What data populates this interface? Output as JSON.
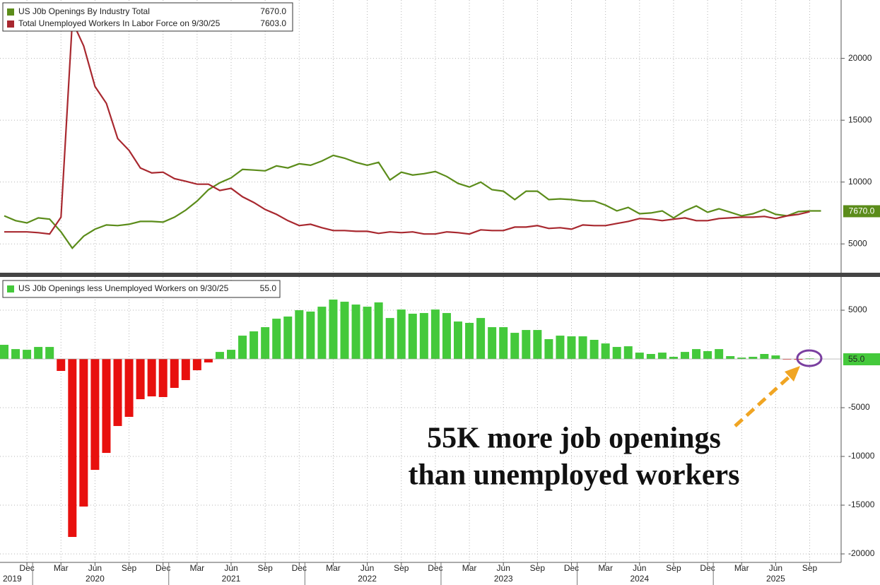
{
  "chart_data": [
    {
      "type": "line",
      "x": [
        "2019-10",
        "2019-11",
        "2019-12",
        "2020-01",
        "2020-02",
        "2020-03",
        "2020-04",
        "2020-05",
        "2020-06",
        "2020-07",
        "2020-08",
        "2020-09",
        "2020-10",
        "2020-11",
        "2020-12",
        "2021-01",
        "2021-02",
        "2021-03",
        "2021-04",
        "2021-05",
        "2021-06",
        "2021-07",
        "2021-08",
        "2021-09",
        "2021-10",
        "2021-11",
        "2021-12",
        "2022-01",
        "2022-02",
        "2022-03",
        "2022-04",
        "2022-05",
        "2022-06",
        "2022-07",
        "2022-08",
        "2022-09",
        "2022-10",
        "2022-11",
        "2022-12",
        "2023-01",
        "2023-02",
        "2023-03",
        "2023-04",
        "2023-05",
        "2023-06",
        "2023-07",
        "2023-08",
        "2023-09",
        "2023-10",
        "2023-11",
        "2023-12",
        "2024-01",
        "2024-02",
        "2024-03",
        "2024-04",
        "2024-05",
        "2024-06",
        "2024-07",
        "2024-08",
        "2024-09",
        "2024-10",
        "2024-11",
        "2024-12",
        "2025-01",
        "2025-02",
        "2025-03",
        "2025-04",
        "2025-05",
        "2025-06",
        "2025-07",
        "2025-08",
        "2025-09"
      ],
      "series": [
        {
          "name": "US J0b Openings By Industry Total",
          "legend_value": "7670.0",
          "tag": "7670.0",
          "color": "#5b8c1a",
          "values": [
            7270,
            6880,
            6700,
            7100,
            7000,
            5970,
            4660,
            5630,
            6190,
            6530,
            6480,
            6590,
            6820,
            6820,
            6760,
            7160,
            7730,
            8470,
            9380,
            9940,
            10340,
            11020,
            10970,
            10910,
            11310,
            11140,
            11480,
            11360,
            11700,
            12160,
            11930,
            11590,
            11360,
            11590,
            10170,
            10800,
            10570,
            10680,
            10850,
            10450,
            9890,
            9600,
            10000,
            9380,
            9260,
            8580,
            9260,
            9260,
            8580,
            8640,
            8580,
            8470,
            8470,
            8130,
            7670,
            7950,
            7440,
            7500,
            7670,
            7100,
            7670,
            8070,
            7560,
            7840,
            7560,
            7270,
            7440,
            7780,
            7390,
            7270,
            7610,
            7670
          ]
        },
        {
          "name": "Total Unemployed Workers In Labor Force  on 9/30/25",
          "legend_value": "7603.0",
          "color": "#a8282f",
          "values": [
            5970,
            5970,
            5970,
            5910,
            5800,
            7160,
            23000,
            21000,
            17730,
            16360,
            13520,
            12560,
            11140,
            10740,
            10800,
            10280,
            10060,
            9830,
            9830,
            9320,
            9490,
            8810,
            8350,
            7780,
            7390,
            6880,
            6480,
            6590,
            6310,
            6080,
            6080,
            6020,
            6020,
            5850,
            5970,
            5910,
            5970,
            5800,
            5800,
            5970,
            5910,
            5800,
            6140,
            6080,
            6080,
            6360,
            6360,
            6480,
            6250,
            6310,
            6190,
            6530,
            6480,
            6480,
            6650,
            6820,
            7050,
            7000,
            6880,
            7000,
            7100,
            6880,
            6880,
            7050,
            7100,
            7160,
            7160,
            7220,
            7050,
            7270,
            7390,
            7603
          ]
        }
      ],
      "ylim": [
        2670,
        24720
      ],
      "yticks": [
        5000,
        10000,
        15000,
        20000
      ],
      "grid": true
    },
    {
      "type": "bar",
      "x": [
        "2019-10",
        "2019-11",
        "2019-12",
        "2020-01",
        "2020-02",
        "2020-03",
        "2020-04",
        "2020-05",
        "2020-06",
        "2020-07",
        "2020-08",
        "2020-09",
        "2020-10",
        "2020-11",
        "2020-12",
        "2021-01",
        "2021-02",
        "2021-03",
        "2021-04",
        "2021-05",
        "2021-06",
        "2021-07",
        "2021-08",
        "2021-09",
        "2021-10",
        "2021-11",
        "2021-12",
        "2022-01",
        "2022-02",
        "2022-03",
        "2022-04",
        "2022-05",
        "2022-06",
        "2022-07",
        "2022-08",
        "2022-09",
        "2022-10",
        "2022-11",
        "2022-12",
        "2023-01",
        "2023-02",
        "2023-03",
        "2023-04",
        "2023-05",
        "2023-06",
        "2023-07",
        "2023-08",
        "2023-09",
        "2023-10",
        "2023-11",
        "2023-12",
        "2024-01",
        "2024-02",
        "2024-03",
        "2024-04",
        "2024-05",
        "2024-06",
        "2024-07",
        "2024-08",
        "2024-09",
        "2024-10",
        "2024-11",
        "2024-12",
        "2025-01",
        "2025-02",
        "2025-03",
        "2025-04",
        "2025-05",
        "2025-06",
        "2025-07",
        "2025-08",
        "2025-09"
      ],
      "name": "US J0b Openings less Unemployed Workers on 9/30/25",
      "legend_value": "55.0",
      "tag": "55.0",
      "positive_color": "#44c93b",
      "negative_color": "#e8100e",
      "values": [
        1450,
        1010,
        940,
        1230,
        1230,
        -1230,
        -18260,
        -15140,
        -11380,
        -9640,
        -6880,
        -5940,
        -4130,
        -3840,
        -3910,
        -2970,
        -2170,
        -1160,
        -360,
        720,
        940,
        2390,
        2830,
        3260,
        4130,
        4350,
        5000,
        4860,
        5360,
        6090,
        5870,
        5580,
        5360,
        5800,
        4200,
        5070,
        4640,
        4710,
        5070,
        4710,
        3840,
        3700,
        4200,
        3260,
        3260,
        2680,
        2970,
        2970,
        2030,
        2390,
        2320,
        2320,
        1960,
        1590,
        1230,
        1300,
        650,
        510,
        650,
        220,
        720,
        1010,
        800,
        1010,
        290,
        140,
        220,
        510,
        360,
        -50,
        -80,
        55
      ],
      "ylim": [
        -20870,
        8410
      ],
      "yticks": [
        -20000,
        -15000,
        -10000,
        -5000,
        5000
      ],
      "grid": true,
      "xticks": [
        {
          "value": "2019-12",
          "label": "Dec"
        },
        {
          "value": "2020-03",
          "label": "Mar"
        },
        {
          "value": "2020-06",
          "label": "Jun"
        },
        {
          "value": "2020-09",
          "label": "Sep"
        },
        {
          "value": "2020-12",
          "label": "Dec"
        },
        {
          "value": "2021-03",
          "label": "Mar"
        },
        {
          "value": "2021-06",
          "label": "Jun"
        },
        {
          "value": "2021-09",
          "label": "Sep"
        },
        {
          "value": "2021-12",
          "label": "Dec"
        },
        {
          "value": "2022-03",
          "label": "Mar"
        },
        {
          "value": "2022-06",
          "label": "Jun"
        },
        {
          "value": "2022-09",
          "label": "Sep"
        },
        {
          "value": "2022-12",
          "label": "Dec"
        },
        {
          "value": "2023-03",
          "label": "Mar"
        },
        {
          "value": "2023-06",
          "label": "Jun"
        },
        {
          "value": "2023-09",
          "label": "Sep"
        },
        {
          "value": "2023-12",
          "label": "Dec"
        },
        {
          "value": "2024-03",
          "label": "Mar"
        },
        {
          "value": "2024-06",
          "label": "Jun"
        },
        {
          "value": "2024-09",
          "label": "Sep"
        },
        {
          "value": "2024-12",
          "label": "Dec"
        },
        {
          "value": "2025-03",
          "label": "Mar"
        },
        {
          "value": "2025-06",
          "label": "Jun"
        },
        {
          "value": "2025-09",
          "label": "Sep"
        }
      ],
      "year_labels": [
        2019,
        2020,
        2021,
        2022,
        2023,
        2024,
        2025
      ],
      "annotation": [
        "55K more job openings",
        "than unemployed workers"
      ]
    }
  ]
}
